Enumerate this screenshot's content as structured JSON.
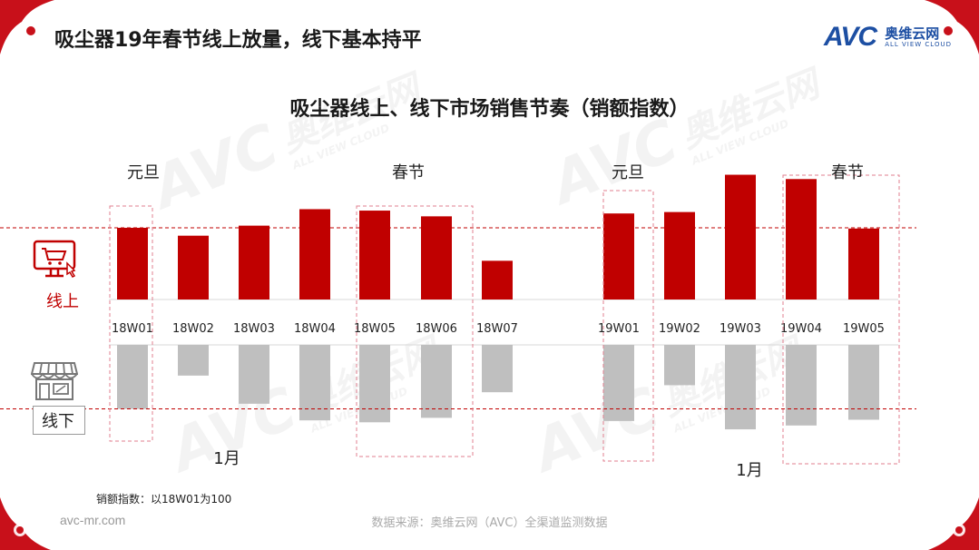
{
  "header": {
    "slide_title": "吸尘器19年春节线上放量，线下基本持平",
    "brand_mark": "AVC",
    "brand_cn": "奥维云网",
    "brand_en": "ALL VIEW CLOUD"
  },
  "watermark": {
    "mark": "AVC",
    "cn": "奥维云网",
    "en": "ALL VIEW CLOUD"
  },
  "annotations": {
    "new_year_2018": "元旦",
    "spring_2018": "春节",
    "new_year_2019": "元旦",
    "spring_2019": "春节"
  },
  "months": {
    "jan_2018": "1月",
    "jan_2019": "1月"
  },
  "channels": {
    "online": "线上",
    "offline": "线下",
    "online_icon": "shopping-cart-computer-icon",
    "offline_icon": "storefront-icon"
  },
  "footer": {
    "note": "销额指数：以18W01为100",
    "source": "数据来源：奥维云网（AVC）全渠道监测数据",
    "site": "avc-mr.com"
  },
  "colors": {
    "online": "#c00000",
    "offline": "#bfbfbf",
    "guide": "#c00000",
    "highlight_box": "#e07f8f",
    "brand": "#1d4fa3"
  },
  "chart_data": {
    "type": "bar",
    "title": "吸尘器线上、线下市场销售节奏（销额指数）",
    "categories": [
      "18W01",
      "18W02",
      "18W03",
      "18W04",
      "18W05",
      "18W06",
      "18W07",
      "19W01",
      "19W02",
      "19W03",
      "19W04",
      "19W05"
    ],
    "series": [
      {
        "name": "线上",
        "values": [
          100,
          89,
          103,
          126,
          124,
          116,
          54,
          120,
          122,
          174,
          168,
          99
        ]
      },
      {
        "name": "线下",
        "values": [
          100,
          48,
          92,
          118,
          121,
          114,
          74,
          119,
          63,
          132,
          126,
          117
        ]
      }
    ],
    "reference_value": 100,
    "highlighted": [
      "18W01",
      "18W05-18W06",
      "19W01",
      "19W04-19W05"
    ]
  }
}
